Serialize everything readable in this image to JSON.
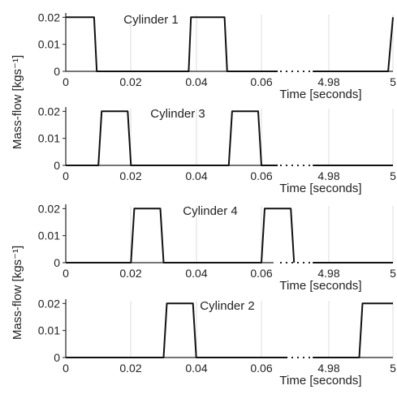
{
  "figure": {
    "ylabel": "Mass-flow [kgs⁻¹]",
    "ylabel_panels": [
      0,
      2
    ]
  },
  "chart_data": [
    {
      "type": "line",
      "title": "Cylinder 1",
      "xlabel": "Time [seconds]",
      "xticks": [
        "0",
        "0.02",
        "0.04",
        "0.06",
        "4.98",
        "5"
      ],
      "yticks": [
        "0",
        "0.01",
        "0.02"
      ],
      "ylim": [
        0,
        0.021
      ],
      "segments": [
        {
          "x": [
            0.0,
            0.0087,
            0.0095,
            0.0377,
            0.0384,
            0.0487,
            0.0495,
            0.065
          ],
          "y": [
            0.02,
            0.02,
            0.0,
            0.0,
            0.02,
            0.02,
            0.0,
            0.0
          ]
        },
        {
          "x": [
            4.975,
            4.9985,
            5.0
          ],
          "y": [
            0.0,
            0.0,
            0.02
          ]
        }
      ]
    },
    {
      "type": "line",
      "title": "Cylinder 3",
      "xlabel": "Time [seconds]",
      "xticks": [
        "0",
        "0.02",
        "0.04",
        "0.06",
        "4.98",
        "5"
      ],
      "yticks": [
        "0",
        "0.01",
        "0.02"
      ],
      "ylim": [
        0,
        0.021
      ],
      "segments": [
        {
          "x": [
            0.0,
            0.01,
            0.011,
            0.019,
            0.02,
            0.05,
            0.051,
            0.059,
            0.06,
            0.065
          ],
          "y": [
            0.0,
            0.0,
            0.02,
            0.02,
            0.0,
            0.0,
            0.02,
            0.02,
            0.0,
            0.0
          ]
        },
        {
          "x": [
            4.975,
            5.0
          ],
          "y": [
            0.0,
            0.0
          ]
        }
      ]
    },
    {
      "type": "line",
      "title": "Cylinder 4",
      "xlabel": "Time [seconds]",
      "xticks": [
        "0",
        "0.02",
        "0.04",
        "0.06",
        "4.98",
        "5"
      ],
      "yticks": [
        "0",
        "0.01",
        "0.02"
      ],
      "ylim": [
        0,
        0.021
      ],
      "segments": [
        {
          "x": [
            0.0,
            0.02,
            0.021,
            0.029,
            0.03,
            0.06,
            0.061,
            0.069,
            0.07
          ],
          "y": [
            0.0,
            0.0,
            0.02,
            0.02,
            0.0,
            0.0,
            0.02,
            0.02,
            0.0
          ]
        },
        {
          "x": [
            4.975,
            5.0
          ],
          "y": [
            0.0,
            0.0
          ]
        }
      ]
    },
    {
      "type": "line",
      "title": "Cylinder 2",
      "xlabel": "Time [seconds]",
      "xticks": [
        "0",
        "0.02",
        "0.04",
        "0.06",
        "4.98",
        "5"
      ],
      "yticks": [
        "0",
        "0.01",
        "0.02"
      ],
      "ylim": [
        0,
        0.021
      ],
      "segments": [
        {
          "x": [
            0.0,
            0.03,
            0.031,
            0.039,
            0.04,
            0.068
          ],
          "y": [
            0.0,
            0.0,
            0.02,
            0.02,
            0.0,
            0.0
          ]
        },
        {
          "x": [
            4.975,
            4.9895,
            4.9905,
            5.0
          ],
          "y": [
            0.0,
            0.0,
            0.02,
            0.02
          ]
        }
      ]
    }
  ]
}
